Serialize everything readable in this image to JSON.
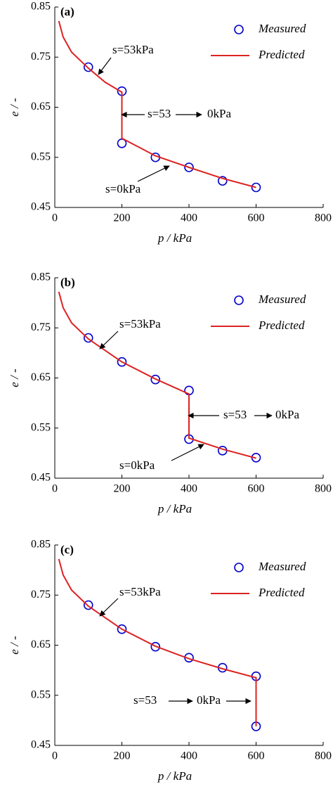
{
  "chart_data": [
    {
      "type": "line",
      "title": "(a)",
      "xlabel": "p / kPa",
      "ylabel": "e / -",
      "xlim": [
        0,
        800
      ],
      "xticks": [
        0,
        200,
        400,
        600,
        800
      ],
      "ylim": [
        0.45,
        0.85
      ],
      "yticks": [
        0.45,
        0.55,
        0.65,
        0.75,
        0.85
      ],
      "legend": "upper right",
      "annotations": [
        "s=53kPa",
        "s=53",
        "0kPa",
        "s=0kPa"
      ],
      "series": [
        {
          "name": "Measured",
          "color": "#0000cc",
          "marker": "circle",
          "x": [
            100,
            200,
            200,
            300,
            400,
            500,
            600
          ],
          "values": [
            0.73,
            0.682,
            0.578,
            0.55,
            0.53,
            0.503,
            0.49
          ]
        },
        {
          "name": "Predicted",
          "color": "#dd2222",
          "marker": "none",
          "x": [
            12,
            25,
            50,
            100,
            150,
            200,
            200,
            300,
            400,
            500,
            600
          ],
          "values": [
            0.822,
            0.79,
            0.76,
            0.728,
            0.7,
            0.68,
            0.588,
            0.553,
            0.53,
            0.508,
            0.49
          ]
        }
      ]
    },
    {
      "type": "line",
      "title": "(b)",
      "xlabel": "p / kPa",
      "ylabel": "e / -",
      "xlim": [
        0,
        800
      ],
      "xticks": [
        0,
        200,
        400,
        600,
        800
      ],
      "ylim": [
        0.45,
        0.85
      ],
      "yticks": [
        0.45,
        0.55,
        0.65,
        0.75,
        0.85
      ],
      "legend": "upper right",
      "annotations": [
        "s=53kPa",
        "s=53",
        "0kPa",
        "s=0kPa"
      ],
      "series": [
        {
          "name": "Measured",
          "color": "#0000cc",
          "marker": "circle",
          "x": [
            100,
            200,
            300,
            400,
            400,
            500,
            600
          ],
          "values": [
            0.73,
            0.682,
            0.647,
            0.625,
            0.528,
            0.505,
            0.491
          ]
        },
        {
          "name": "Predicted",
          "color": "#dd2222",
          "marker": "none",
          "x": [
            12,
            25,
            50,
            100,
            200,
            300,
            400,
            400,
            500,
            600
          ],
          "values": [
            0.822,
            0.79,
            0.76,
            0.728,
            0.682,
            0.648,
            0.618,
            0.53,
            0.508,
            0.49
          ]
        }
      ]
    },
    {
      "type": "line",
      "title": "(c)",
      "xlabel": "p / kPa",
      "ylabel": "e / -",
      "xlim": [
        0,
        800
      ],
      "xticks": [
        0,
        200,
        400,
        600,
        800
      ],
      "ylim": [
        0.45,
        0.85
      ],
      "yticks": [
        0.45,
        0.55,
        0.65,
        0.75,
        0.85
      ],
      "legend": "upper right",
      "annotations": [
        "s=53kPa",
        "s=53",
        "0kPa"
      ],
      "series": [
        {
          "name": "Measured",
          "color": "#0000cc",
          "marker": "circle",
          "x": [
            100,
            200,
            300,
            400,
            500,
            600,
            600
          ],
          "values": [
            0.73,
            0.682,
            0.647,
            0.625,
            0.605,
            0.588,
            0.488
          ]
        },
        {
          "name": "Predicted",
          "color": "#dd2222",
          "marker": "none",
          "x": [
            12,
            25,
            50,
            100,
            200,
            300,
            400,
            500,
            600,
            600
          ],
          "values": [
            0.822,
            0.79,
            0.76,
            0.728,
            0.682,
            0.648,
            0.623,
            0.603,
            0.585,
            0.488
          ]
        }
      ]
    }
  ]
}
